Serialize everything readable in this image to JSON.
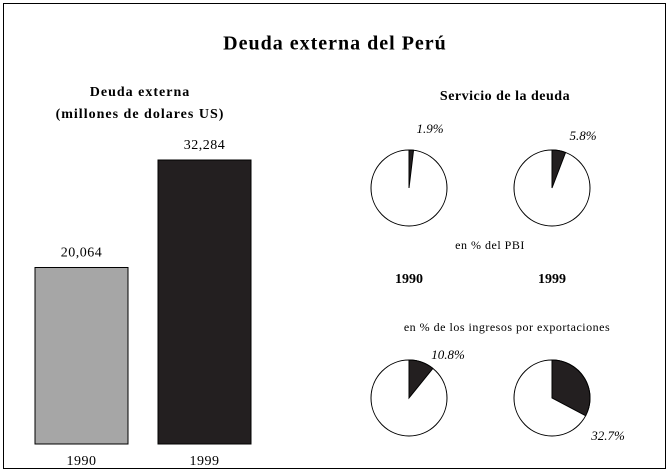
{
  "title": "Deuda externa del Perú",
  "chart_data": [
    {
      "type": "bar",
      "title": "Deuda externa",
      "subtitle": "(millones de dolares US)",
      "categories": [
        "1990",
        "1999"
      ],
      "values": [
        20064,
        32284
      ],
      "value_labels": [
        "20,064",
        "32,284"
      ],
      "colors": [
        "#a6a6a6",
        "#231f20"
      ]
    },
    {
      "type": "pie",
      "title": "Servicio de la deuda",
      "subtitle": "en % del PBI",
      "categories": [
        "1990",
        "1999"
      ],
      "values": [
        1.9,
        5.8
      ],
      "value_labels": [
        "1.9%",
        "5.8%"
      ],
      "color": "#231f20"
    },
    {
      "type": "pie",
      "subtitle": "en % de los ingresos por exportaciones",
      "values": [
        10.8,
        32.7
      ],
      "value_labels": [
        "10.8%",
        "32.7%"
      ],
      "color": "#231f20"
    }
  ]
}
